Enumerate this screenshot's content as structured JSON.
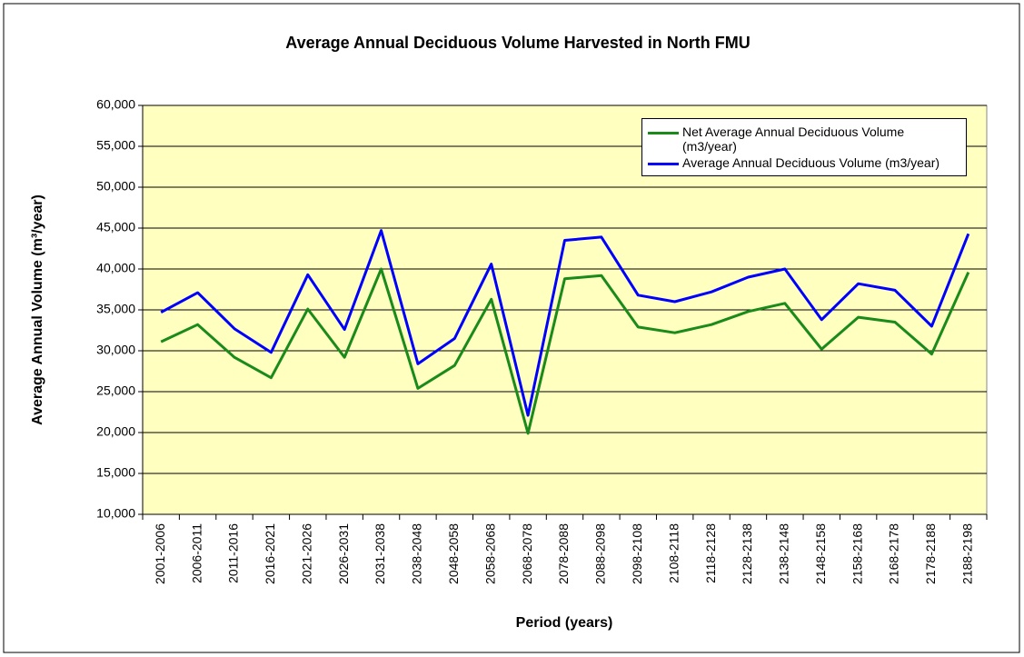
{
  "chart_data": {
    "type": "line",
    "title": "Average Annual Deciduous Volume Harvested in North FMU",
    "x_label": "Period (years)",
    "y_label": "Average Annual Volume (m³/year)",
    "categories": [
      "2001-2006",
      "2006-2011",
      "2011-2016",
      "2016-2021",
      "2021-2026",
      "2026-2031",
      "2031-2038",
      "2038-2048",
      "2048-2058",
      "2058-2068",
      "2068-2078",
      "2078-2088",
      "2088-2098",
      "2098-2108",
      "2108-2118",
      "2118-2128",
      "2128-2138",
      "2138-2148",
      "2148-2158",
      "2158-2168",
      "2168-2178",
      "2178-2188",
      "2188-2198"
    ],
    "series": [
      {
        "name": "Net Average Annual Deciduous Volume (m3/year)",
        "color": "#1a8a1a",
        "values": [
          31100,
          33200,
          29200,
          26700,
          35100,
          29200,
          40000,
          25400,
          28200,
          36300,
          19900,
          38800,
          39200,
          32900,
          32200,
          33200,
          34800,
          35800,
          30200,
          34100,
          33500,
          29600,
          39600
        ]
      },
      {
        "name": "Average Annual Deciduous Volume (m3/year)",
        "color": "#0000ff",
        "values": [
          34700,
          37100,
          32700,
          29800,
          39300,
          32600,
          44700,
          28400,
          31500,
          40600,
          22100,
          43500,
          43900,
          36800,
          36000,
          37200,
          39000,
          40000,
          33800,
          38200,
          37400,
          33000,
          44300
        ]
      }
    ],
    "ylim": [
      10000,
      60000
    ],
    "yticks": [
      {
        "value": 10000,
        "label": "10,000"
      },
      {
        "value": 15000,
        "label": "15,000"
      },
      {
        "value": 20000,
        "label": "20,000"
      },
      {
        "value": 25000,
        "label": "25,000"
      },
      {
        "value": 30000,
        "label": "30,000"
      },
      {
        "value": 35000,
        "label": "35,000"
      },
      {
        "value": 40000,
        "label": "40,000"
      },
      {
        "value": 45000,
        "label": "45,000"
      },
      {
        "value": 50000,
        "label": "50,000"
      },
      {
        "value": 55000,
        "label": "55,000"
      },
      {
        "value": 60000,
        "label": "60,000"
      }
    ],
    "grid": true,
    "legend_position": "top-right"
  }
}
